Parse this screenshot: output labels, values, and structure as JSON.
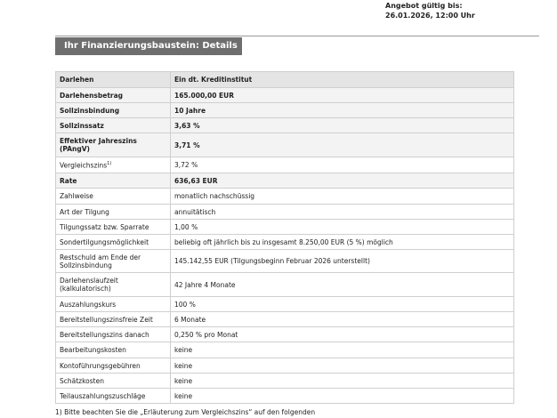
{
  "header": {
    "valid_label": "Angebot gültig bis:",
    "valid_date": "26.01.2026, 12:00 Uhr"
  },
  "section_title": "Ihr Finanzierungsbaustein: Details",
  "table": {
    "header": [
      "Darlehen",
      "Ein dt. Kreditinstitut"
    ],
    "rows": [
      {
        "label": "Darlehensbetrag",
        "value": "165.000,00 EUR"
      },
      {
        "label": "Sollzinsbindung",
        "value": "10 Jahre"
      },
      {
        "label": "Sollzinssatz",
        "value": "3,63 %"
      },
      {
        "label": "Effektiver Jahreszins (PAngV)",
        "value": "3,71 %"
      },
      {
        "label": "Vergleichszins",
        "note": "1)",
        "value": "3,72 %"
      },
      {
        "label": "Rate",
        "value": "636,63 EUR"
      },
      {
        "label": "Zahlweise",
        "value": "monatlich nachschüssig"
      },
      {
        "label": "Art der Tilgung",
        "value": "annuitätisch"
      },
      {
        "label": "Tilgungssatz bzw. Sparrate",
        "value": "1,00 %"
      },
      {
        "label": "Sondertilgungsmöglichkeit",
        "value": "beliebig oft jährlich bis zu insgesamt 8.250,00 EUR (5 %) möglich"
      },
      {
        "label": "Restschuld am Ende der Sollzinsbindung",
        "value": "145.142,55 EUR (Tilgungsbeginn Februar 2026 unterstellt)"
      },
      {
        "label": "Darlehenslaufzeit (kalkulatorisch)",
        "value": "42 Jahre 4 Monate"
      },
      {
        "label": "Auszahlungskurs",
        "value": "100 %"
      },
      {
        "label": "Bereitstellungszinsfreie Zeit",
        "value": "6 Monate"
      },
      {
        "label": "Bereitstellungszins danach",
        "value": "0,250 % pro Monat"
      },
      {
        "label": "Bearbeitungskosten",
        "value": "keine"
      },
      {
        "label": "Kontoführungsgebühren",
        "value": "keine"
      },
      {
        "label": "Schätzkosten",
        "value": "keine"
      },
      {
        "label": "Teilauszahlungszuschläge",
        "value": "keine"
      }
    ]
  },
  "footnote": "1) Bitte beachten Sie die „Erläuterung zum Vergleichszins“ auf den folgenden"
}
